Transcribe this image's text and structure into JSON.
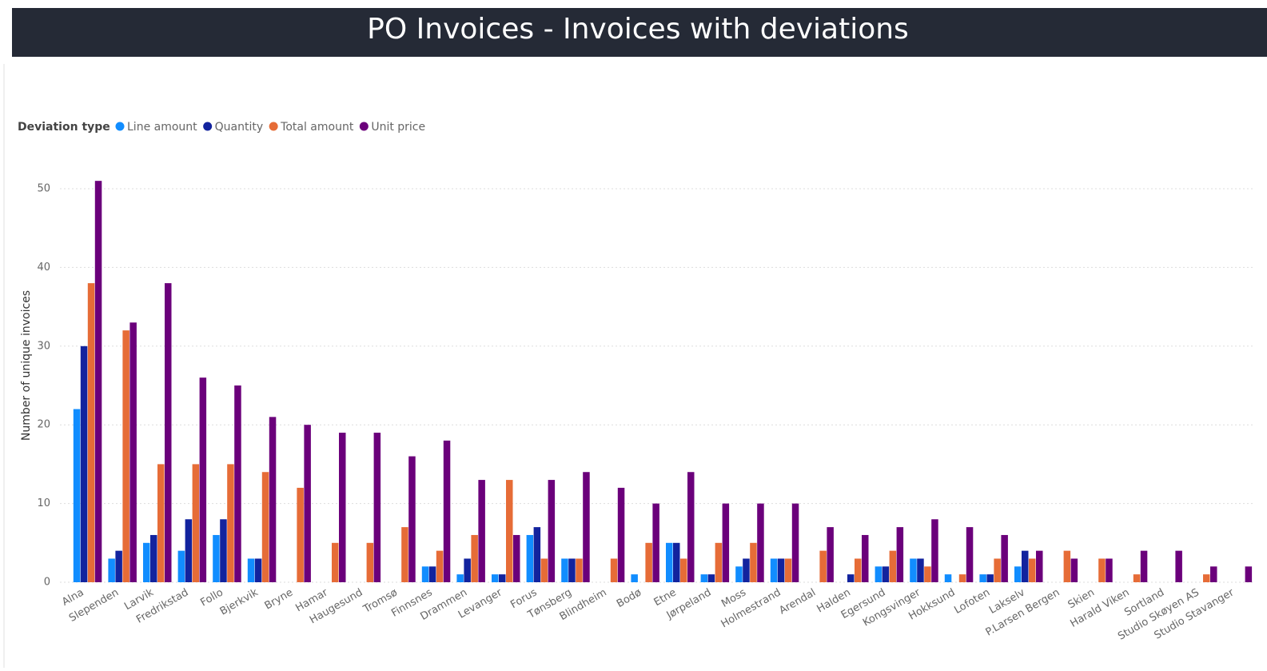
{
  "chart_data": {
    "type": "bar",
    "title": "PO Invoices - Invoices with deviations",
    "legend_title": "Deviation type",
    "y_label": "Number of unique invoices",
    "categories": [
      "Alna",
      "Slependen",
      "Larvik",
      "Fredrikstad",
      "Follo",
      "Bjerkvik",
      "Bryne",
      "Hamar",
      "Haugesund",
      "Tromsø",
      "Finnsnes",
      "Drammen",
      "Levanger",
      "Forus",
      "Tønsberg",
      "Blindheim",
      "Bodø",
      "Etne",
      "Jørpeland",
      "Moss",
      "Holmestrand",
      "Arendal",
      "Halden",
      "Egersund",
      "Kongsvinger",
      "Hokksund",
      "Lofoten",
      "Lakselv",
      "P.Larsen Bergen",
      "Skien",
      "Harald Viken",
      "Sortland",
      "Studio Skøyen AS",
      "Studio Stavanger"
    ],
    "series": [
      {
        "name": "Line amount",
        "color": "#118DFF",
        "values": [
          22,
          3,
          5,
          4,
          6,
          3,
          null,
          null,
          null,
          null,
          2,
          1,
          1,
          6,
          3,
          null,
          1,
          5,
          1,
          2,
          3,
          null,
          null,
          2,
          3,
          1,
          1,
          2,
          null,
          null,
          null,
          null,
          null,
          null
        ]
      },
      {
        "name": "Quantity",
        "color": "#12239E",
        "values": [
          30,
          4,
          6,
          8,
          8,
          3,
          null,
          null,
          null,
          null,
          2,
          3,
          1,
          7,
          3,
          null,
          null,
          5,
          1,
          3,
          3,
          null,
          1,
          2,
          3,
          null,
          1,
          4,
          null,
          null,
          null,
          null,
          null,
          null
        ]
      },
      {
        "name": "Total amount",
        "color": "#E66C37",
        "values": [
          38,
          32,
          15,
          15,
          15,
          14,
          12,
          5,
          5,
          7,
          4,
          6,
          13,
          3,
          3,
          3,
          5,
          3,
          5,
          5,
          3,
          4,
          3,
          4,
          2,
          1,
          3,
          3,
          4,
          3,
          1,
          null,
          1,
          null
        ]
      },
      {
        "name": "Unit price",
        "color": "#6B007B",
        "values": [
          51,
          33,
          38,
          26,
          25,
          21,
          20,
          19,
          19,
          16,
          18,
          13,
          6,
          13,
          14,
          12,
          10,
          14,
          10,
          10,
          10,
          7,
          6,
          7,
          8,
          7,
          6,
          4,
          3,
          3,
          4,
          4,
          2,
          2
        ]
      }
    ],
    "ylim": [
      0,
      52
    ],
    "yticks": [
      0,
      10,
      20,
      30,
      40,
      50
    ],
    "grid": true
  }
}
